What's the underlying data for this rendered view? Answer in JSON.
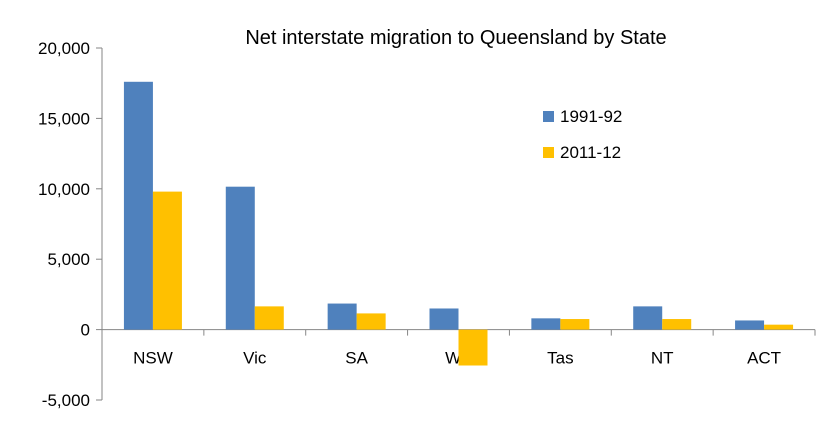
{
  "chart_data": {
    "type": "bar",
    "title": "Net interstate migration to Queensland by State",
    "xlabel": "",
    "ylabel": "",
    "categories": [
      "NSW",
      "Vic",
      "SA",
      "WA",
      "Tas",
      "NT",
      "ACT"
    ],
    "series": [
      {
        "name": "1991-92",
        "color": "#4F81BD",
        "values": [
          17600,
          10150,
          1850,
          1500,
          800,
          1650,
          650
        ]
      },
      {
        "name": "2011-12",
        "color": "#FFC000",
        "values": [
          9800,
          1650,
          1150,
          -2550,
          750,
          750,
          350
        ]
      }
    ],
    "ylim": [
      -5000,
      20000
    ],
    "yticks": [
      20000,
      15000,
      10000,
      5000,
      0,
      -5000
    ],
    "ytick_labels": [
      "20,000",
      "15,000",
      "10,000",
      "5,000",
      "0",
      "-5,000"
    ],
    "grid": false,
    "legend_position": "upper-right-inside"
  }
}
